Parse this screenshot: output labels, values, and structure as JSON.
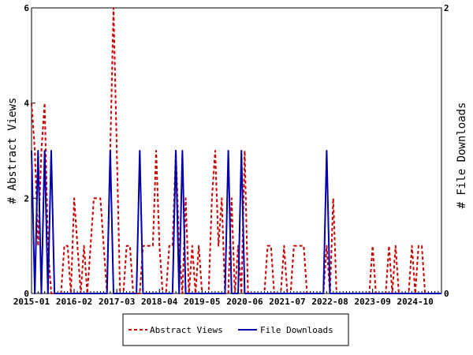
{
  "chart_data": {
    "type": "line",
    "xlabel": "",
    "ylabel_left": "# Abstract Views",
    "ylabel_right": "# File Downloads",
    "x_ticks": [
      "2015-01",
      "2016-02",
      "2017-03",
      "2018-04",
      "2019-05",
      "2020-06",
      "2021-07",
      "2022-08",
      "2023-09",
      "2024-10"
    ],
    "x_start": "2015-01",
    "x_end": "2025-06",
    "ylim_left": [
      0,
      6
    ],
    "yticks_left": [
      0,
      2,
      4,
      6
    ],
    "ylim_right": [
      0,
      2
    ],
    "yticks_right": [
      0,
      2
    ],
    "grid": false,
    "legend_position": "bottom-center",
    "series": [
      {
        "name": "Abstract Views",
        "axis": "left",
        "color": "#cc0000",
        "style": "dashed",
        "points": [
          [
            "2015-01",
            4
          ],
          [
            "2015-02",
            3
          ],
          [
            "2015-03",
            1
          ],
          [
            "2015-04",
            3
          ],
          [
            "2015-05",
            4
          ],
          [
            "2015-06",
            1
          ],
          [
            "2015-07",
            0
          ],
          [
            "2015-08",
            0
          ],
          [
            "2015-09",
            0
          ],
          [
            "2015-10",
            0
          ],
          [
            "2015-11",
            1
          ],
          [
            "2015-12",
            1
          ],
          [
            "2016-01",
            0
          ],
          [
            "2016-02",
            2
          ],
          [
            "2016-03",
            1
          ],
          [
            "2016-04",
            0
          ],
          [
            "2016-05",
            1
          ],
          [
            "2016-06",
            0
          ],
          [
            "2016-07",
            1
          ],
          [
            "2016-08",
            2
          ],
          [
            "2016-09",
            2
          ],
          [
            "2016-10",
            2
          ],
          [
            "2016-11",
            1
          ],
          [
            "2016-12",
            0
          ],
          [
            "2017-01",
            3
          ],
          [
            "2017-02",
            6
          ],
          [
            "2017-03",
            3
          ],
          [
            "2017-04",
            0
          ],
          [
            "2017-05",
            0
          ],
          [
            "2017-06",
            1
          ],
          [
            "2017-07",
            1
          ],
          [
            "2017-08",
            0
          ],
          [
            "2017-09",
            0
          ],
          [
            "2017-10",
            0
          ],
          [
            "2017-11",
            1
          ],
          [
            "2017-12",
            1
          ],
          [
            "2018-01",
            1
          ],
          [
            "2018-02",
            1
          ],
          [
            "2018-03",
            3
          ],
          [
            "2018-04",
            1
          ],
          [
            "2018-05",
            0
          ],
          [
            "2018-06",
            0
          ],
          [
            "2018-07",
            1
          ],
          [
            "2018-08",
            1
          ],
          [
            "2018-09",
            3
          ],
          [
            "2018-10",
            1
          ],
          [
            "2018-11",
            0
          ],
          [
            "2018-12",
            2
          ],
          [
            "2019-01",
            0
          ],
          [
            "2019-02",
            1
          ],
          [
            "2019-03",
            0
          ],
          [
            "2019-04",
            1
          ],
          [
            "2019-05",
            0
          ],
          [
            "2019-06",
            0
          ],
          [
            "2019-07",
            0
          ],
          [
            "2019-08",
            2
          ],
          [
            "2019-09",
            3
          ],
          [
            "2019-10",
            1
          ],
          [
            "2019-11",
            2
          ],
          [
            "2019-12",
            0
          ],
          [
            "2020-01",
            0
          ],
          [
            "2020-02",
            2
          ],
          [
            "2020-03",
            0
          ],
          [
            "2020-04",
            1
          ],
          [
            "2020-05",
            0
          ],
          [
            "2020-06",
            3
          ],
          [
            "2020-07",
            0
          ],
          [
            "2020-08",
            0
          ],
          [
            "2020-09",
            0
          ],
          [
            "2020-10",
            0
          ],
          [
            "2020-11",
            0
          ],
          [
            "2020-12",
            0
          ],
          [
            "2021-01",
            1
          ],
          [
            "2021-02",
            1
          ],
          [
            "2021-03",
            0
          ],
          [
            "2021-04",
            0
          ],
          [
            "2021-05",
            0
          ],
          [
            "2021-06",
            1
          ],
          [
            "2021-07",
            0
          ],
          [
            "2021-08",
            0
          ],
          [
            "2021-09",
            1
          ],
          [
            "2021-10",
            1
          ],
          [
            "2021-11",
            1
          ],
          [
            "2021-12",
            1
          ],
          [
            "2022-01",
            0
          ],
          [
            "2022-02",
            0
          ],
          [
            "2022-03",
            0
          ],
          [
            "2022-04",
            0
          ],
          [
            "2022-05",
            0
          ],
          [
            "2022-06",
            0
          ],
          [
            "2022-07",
            1
          ],
          [
            "2022-08",
            0
          ],
          [
            "2022-09",
            2
          ],
          [
            "2022-10",
            0
          ],
          [
            "2022-11",
            0
          ],
          [
            "2022-12",
            0
          ],
          [
            "2023-01",
            0
          ],
          [
            "2023-02",
            0
          ],
          [
            "2023-03",
            0
          ],
          [
            "2023-04",
            0
          ],
          [
            "2023-05",
            0
          ],
          [
            "2023-06",
            0
          ],
          [
            "2023-07",
            0
          ],
          [
            "2023-08",
            0
          ],
          [
            "2023-09",
            1
          ],
          [
            "2023-10",
            0
          ],
          [
            "2023-11",
            0
          ],
          [
            "2023-12",
            0
          ],
          [
            "2024-01",
            0
          ],
          [
            "2024-02",
            1
          ],
          [
            "2024-03",
            0
          ],
          [
            "2024-04",
            1
          ],
          [
            "2024-05",
            0
          ],
          [
            "2024-06",
            0
          ],
          [
            "2024-07",
            0
          ],
          [
            "2024-08",
            0
          ],
          [
            "2024-09",
            1
          ],
          [
            "2024-10",
            0
          ],
          [
            "2024-11",
            1
          ],
          [
            "2024-12",
            1
          ],
          [
            "2025-01",
            0
          ],
          [
            "2025-02",
            0
          ],
          [
            "2025-03",
            0
          ],
          [
            "2025-04",
            0
          ],
          [
            "2025-05",
            0
          ],
          [
            "2025-06",
            0
          ]
        ]
      },
      {
        "name": "File Downloads",
        "axis": "right",
        "color": "#0000aa",
        "style": "solid",
        "points": [
          [
            "2015-01",
            1
          ],
          [
            "2015-02",
            0
          ],
          [
            "2015-03",
            1
          ],
          [
            "2015-04",
            0
          ],
          [
            "2015-05",
            1
          ],
          [
            "2015-06",
            0
          ],
          [
            "2015-07",
            1
          ],
          [
            "2015-08",
            0
          ],
          [
            "2015-09",
            0
          ],
          [
            "2015-10",
            0
          ],
          [
            "2015-11",
            0
          ],
          [
            "2015-12",
            0
          ],
          [
            "2016-01",
            0
          ],
          [
            "2016-02",
            0
          ],
          [
            "2016-03",
            0
          ],
          [
            "2016-04",
            0
          ],
          [
            "2016-05",
            0
          ],
          [
            "2016-06",
            0
          ],
          [
            "2016-07",
            0
          ],
          [
            "2016-08",
            0
          ],
          [
            "2016-09",
            0
          ],
          [
            "2016-10",
            0
          ],
          [
            "2016-11",
            0
          ],
          [
            "2016-12",
            0
          ],
          [
            "2017-01",
            1
          ],
          [
            "2017-02",
            0
          ],
          [
            "2017-03",
            0
          ],
          [
            "2017-04",
            0
          ],
          [
            "2017-05",
            0
          ],
          [
            "2017-06",
            0
          ],
          [
            "2017-07",
            0
          ],
          [
            "2017-08",
            0
          ],
          [
            "2017-09",
            0
          ],
          [
            "2017-10",
            1
          ],
          [
            "2017-11",
            0
          ],
          [
            "2017-12",
            0
          ],
          [
            "2018-01",
            0
          ],
          [
            "2018-02",
            0
          ],
          [
            "2018-03",
            0
          ],
          [
            "2018-04",
            0
          ],
          [
            "2018-05",
            0
          ],
          [
            "2018-06",
            0
          ],
          [
            "2018-07",
            0
          ],
          [
            "2018-08",
            0
          ],
          [
            "2018-09",
            1
          ],
          [
            "2018-10",
            0
          ],
          [
            "2018-11",
            1
          ],
          [
            "2018-12",
            0
          ],
          [
            "2019-01",
            0
          ],
          [
            "2019-02",
            0
          ],
          [
            "2019-03",
            0
          ],
          [
            "2019-04",
            0
          ],
          [
            "2019-05",
            0
          ],
          [
            "2019-06",
            0
          ],
          [
            "2019-07",
            0
          ],
          [
            "2019-08",
            0
          ],
          [
            "2019-09",
            0
          ],
          [
            "2019-10",
            0
          ],
          [
            "2019-11",
            0
          ],
          [
            "2019-12",
            0
          ],
          [
            "2020-01",
            1
          ],
          [
            "2020-02",
            0
          ],
          [
            "2020-03",
            0
          ],
          [
            "2020-04",
            0
          ],
          [
            "2020-05",
            1
          ],
          [
            "2020-06",
            0
          ],
          [
            "2020-07",
            0
          ],
          [
            "2020-08",
            0
          ],
          [
            "2020-09",
            0
          ],
          [
            "2020-10",
            0
          ],
          [
            "2020-11",
            0
          ],
          [
            "2020-12",
            0
          ],
          [
            "2021-01",
            0
          ],
          [
            "2021-02",
            0
          ],
          [
            "2021-03",
            0
          ],
          [
            "2021-04",
            0
          ],
          [
            "2021-05",
            0
          ],
          [
            "2021-06",
            0
          ],
          [
            "2021-07",
            0
          ],
          [
            "2021-08",
            0
          ],
          [
            "2021-09",
            0
          ],
          [
            "2021-10",
            0
          ],
          [
            "2021-11",
            0
          ],
          [
            "2021-12",
            0
          ],
          [
            "2022-01",
            0
          ],
          [
            "2022-02",
            0
          ],
          [
            "2022-03",
            0
          ],
          [
            "2022-04",
            0
          ],
          [
            "2022-05",
            0
          ],
          [
            "2022-06",
            0
          ],
          [
            "2022-07",
            1
          ],
          [
            "2022-08",
            0
          ],
          [
            "2022-09",
            0
          ],
          [
            "2022-10",
            0
          ],
          [
            "2022-11",
            0
          ],
          [
            "2022-12",
            0
          ],
          [
            "2023-01",
            0
          ],
          [
            "2023-02",
            0
          ],
          [
            "2023-03",
            0
          ],
          [
            "2023-04",
            0
          ],
          [
            "2023-05",
            0
          ],
          [
            "2023-06",
            0
          ],
          [
            "2023-07",
            0
          ],
          [
            "2023-08",
            0
          ],
          [
            "2023-09",
            0
          ],
          [
            "2023-10",
            0
          ],
          [
            "2023-11",
            0
          ],
          [
            "2023-12",
            0
          ],
          [
            "2024-01",
            0
          ],
          [
            "2024-02",
            0
          ],
          [
            "2024-03",
            0
          ],
          [
            "2024-04",
            0
          ],
          [
            "2024-05",
            0
          ],
          [
            "2024-06",
            0
          ],
          [
            "2024-07",
            0
          ],
          [
            "2024-08",
            0
          ],
          [
            "2024-09",
            0
          ],
          [
            "2024-10",
            0
          ],
          [
            "2024-11",
            0
          ],
          [
            "2024-12",
            0
          ],
          [
            "2025-01",
            0
          ],
          [
            "2025-02",
            0
          ],
          [
            "2025-03",
            0
          ],
          [
            "2025-04",
            0
          ],
          [
            "2025-05",
            0
          ],
          [
            "2025-06",
            0
          ]
        ]
      }
    ]
  }
}
